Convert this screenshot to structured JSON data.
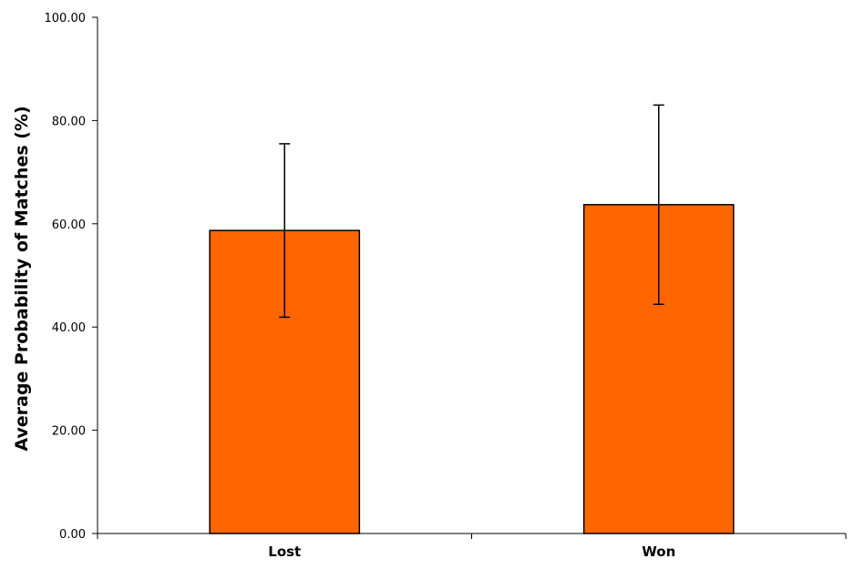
{
  "chart_data": {
    "type": "bar",
    "title": "",
    "xlabel": "",
    "ylabel": "Average Probability of Matches (%)",
    "categories": [
      "Lost",
      "Won"
    ],
    "values": [
      58.7,
      63.7
    ],
    "error": [
      16.8,
      19.3
    ],
    "ylim": [
      0,
      100
    ],
    "yticks": [
      0,
      20,
      40,
      60,
      80,
      100
    ],
    "ytick_labels": [
      "0.00",
      "20.00",
      "40.00",
      "60.00",
      "80.00",
      "100.00"
    ],
    "grid": false,
    "legend": "none",
    "bar_color": "#ff6600"
  }
}
